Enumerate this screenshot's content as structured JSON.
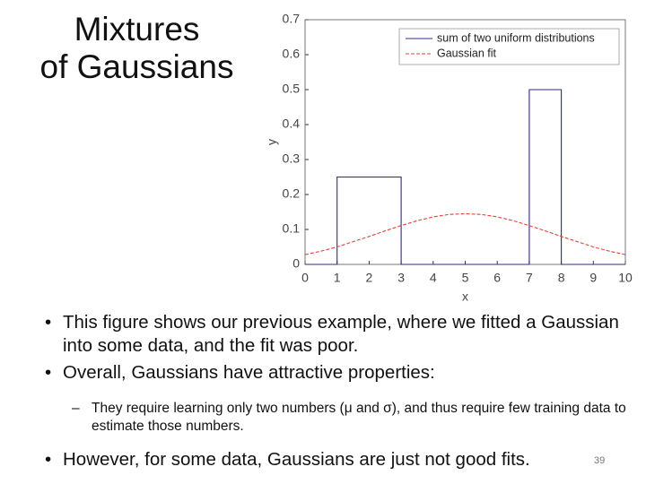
{
  "slide": {
    "title_lines": [
      "Mixtures",
      "of Gaussians"
    ],
    "bullets": [
      "This figure shows our previous example, where we fitted a Gaussian into some data, and the fit was poor.",
      "Overall, Gaussians have attractive properties:"
    ],
    "sub_bullets": [
      "They require learning only two numbers (μ and σ), and thus require few training data to estimate those numbers."
    ],
    "last_bullet": "However, for some data, Gaussians are just not good fits.",
    "page_number": "39"
  },
  "chart_data": {
    "type": "line",
    "x_label": "x",
    "y_label": "y",
    "xlim": [
      0,
      10
    ],
    "ylim": [
      0,
      0.7
    ],
    "xticks": [
      0,
      1,
      2,
      3,
      4,
      5,
      6,
      7,
      8,
      9,
      10
    ],
    "yticks": [
      0,
      0.1,
      0.2,
      0.3,
      0.4,
      0.5,
      0.6,
      0.7
    ],
    "grid": false,
    "legend": "northeast",
    "series": [
      {
        "name": "sum of two uniform distributions",
        "color": "#2b2b8c",
        "dash": false,
        "x": [
          0,
          1,
          1,
          3,
          3,
          7,
          7,
          8,
          8,
          10
        ],
        "values": [
          0,
          0,
          0.25,
          0.25,
          0,
          0,
          0.5,
          0.5,
          0,
          0
        ]
      },
      {
        "name": "Gaussian fit",
        "color": "#e0443a",
        "dash": true,
        "x": [
          0,
          0.5,
          1,
          1.5,
          2,
          2.5,
          3,
          3.5,
          4,
          4.5,
          5,
          5.5,
          6,
          6.5,
          7,
          7.5,
          8,
          8.5,
          9,
          9.5,
          10
        ],
        "values": [
          0.028,
          0.038,
          0.05,
          0.065,
          0.08,
          0.096,
          0.111,
          0.125,
          0.136,
          0.143,
          0.145,
          0.143,
          0.136,
          0.125,
          0.111,
          0.096,
          0.08,
          0.065,
          0.05,
          0.038,
          0.028
        ]
      }
    ]
  }
}
